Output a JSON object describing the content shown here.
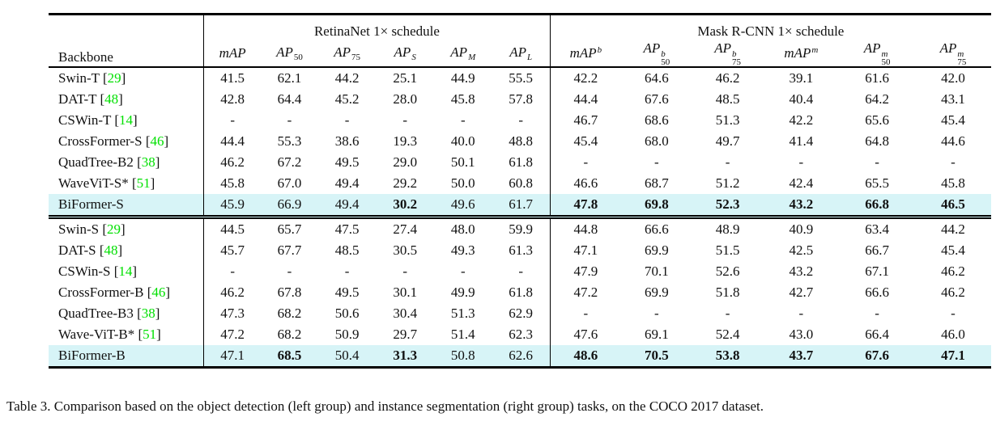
{
  "caption": "Table 3. Comparison based on the object detection (left group) and instance segmentation (right group) tasks, on the COCO 2017 dataset.",
  "colors": {
    "highlight": "#d7f4f7",
    "citation": "#00e000"
  },
  "table": {
    "header": {
      "backbone_label": "Backbone",
      "groups": [
        {
          "label": "RetinaNet 1× schedule",
          "columns": [
            {
              "base": "mAP"
            },
            {
              "base": "AP",
              "sub": "50"
            },
            {
              "base": "AP",
              "sub": "75"
            },
            {
              "base": "AP",
              "sub": "S"
            },
            {
              "base": "AP",
              "sub": "M"
            },
            {
              "base": "AP",
              "sub": "L"
            }
          ]
        },
        {
          "label": "Mask R-CNN 1× schedule",
          "columns": [
            {
              "base": "mAP",
              "sup": "b"
            },
            {
              "base": "AP",
              "sub": "50",
              "sup": "b"
            },
            {
              "base": "AP",
              "sub": "75",
              "sup": "b"
            },
            {
              "base": "mAP",
              "sup": "m"
            },
            {
              "base": "AP",
              "sub": "50",
              "sup": "m"
            },
            {
              "base": "AP",
              "sub": "75",
              "sup": "m"
            }
          ]
        }
      ]
    },
    "row_groups": [
      {
        "rows": [
          {
            "name": "Swin-T",
            "cite": "[29]",
            "highlight": false,
            "bold": [],
            "values": [
              "41.5",
              "62.1",
              "44.2",
              "25.1",
              "44.9",
              "55.5",
              "42.2",
              "64.6",
              "46.2",
              "39.1",
              "61.6",
              "42.0"
            ]
          },
          {
            "name": "DAT-T",
            "cite": "[48]",
            "highlight": false,
            "bold": [],
            "values": [
              "42.8",
              "64.4",
              "45.2",
              "28.0",
              "45.8",
              "57.8",
              "44.4",
              "67.6",
              "48.5",
              "40.4",
              "64.2",
              "43.1"
            ]
          },
          {
            "name": "CSWin-T",
            "cite": "[14]",
            "highlight": false,
            "bold": [],
            "values": [
              "-",
              "-",
              "-",
              "-",
              "-",
              "-",
              "46.7",
              "68.6",
              "51.3",
              "42.2",
              "65.6",
              "45.4"
            ]
          },
          {
            "name": "CrossFormer-S",
            "cite": "[46]",
            "highlight": false,
            "bold": [],
            "values": [
              "44.4",
              "55.3",
              "38.6",
              "19.3",
              "40.0",
              "48.8",
              "45.4",
              "68.0",
              "49.7",
              "41.4",
              "64.8",
              "44.6"
            ]
          },
          {
            "name": "QuadTree-B2",
            "cite": "[38]",
            "highlight": false,
            "bold": [],
            "values": [
              "46.2",
              "67.2",
              "49.5",
              "29.0",
              "50.1",
              "61.8",
              "-",
              "-",
              "-",
              "-",
              "-",
              "-"
            ]
          },
          {
            "name": "WaveViT-S*",
            "cite": "[51]",
            "highlight": false,
            "bold": [],
            "values": [
              "45.8",
              "67.0",
              "49.4",
              "29.2",
              "50.0",
              "60.8",
              "46.6",
              "68.7",
              "51.2",
              "42.4",
              "65.5",
              "45.8"
            ]
          },
          {
            "name": "BiFormer-S",
            "cite": "",
            "highlight": true,
            "bold": [
              3,
              6,
              7,
              8,
              9,
              10,
              11
            ],
            "values": [
              "45.9",
              "66.9",
              "49.4",
              "30.2",
              "49.6",
              "61.7",
              "47.8",
              "69.8",
              "52.3",
              "43.2",
              "66.8",
              "46.5"
            ]
          }
        ]
      },
      {
        "rows": [
          {
            "name": "Swin-S",
            "cite": "[29]",
            "highlight": false,
            "bold": [],
            "values": [
              "44.5",
              "65.7",
              "47.5",
              "27.4",
              "48.0",
              "59.9",
              "44.8",
              "66.6",
              "48.9",
              "40.9",
              "63.4",
              "44.2"
            ]
          },
          {
            "name": "DAT-S",
            "cite": "[48]",
            "highlight": false,
            "bold": [],
            "values": [
              "45.7",
              "67.7",
              "48.5",
              "30.5",
              "49.3",
              "61.3",
              "47.1",
              "69.9",
              "51.5",
              "42.5",
              "66.7",
              "45.4"
            ]
          },
          {
            "name": "CSWin-S",
            "cite": "[14]",
            "highlight": false,
            "bold": [],
            "values": [
              "-",
              "-",
              "-",
              "-",
              "-",
              "-",
              "47.9",
              "70.1",
              "52.6",
              "43.2",
              "67.1",
              "46.2"
            ]
          },
          {
            "name": "CrossFormer-B",
            "cite": "[46]",
            "highlight": false,
            "bold": [],
            "values": [
              "46.2",
              "67.8",
              "49.5",
              "30.1",
              "49.9",
              "61.8",
              "47.2",
              "69.9",
              "51.8",
              "42.7",
              "66.6",
              "46.2"
            ]
          },
          {
            "name": "QuadTree-B3",
            "cite": "[38]",
            "highlight": false,
            "bold": [],
            "values": [
              "47.3",
              "68.2",
              "50.6",
              "30.4",
              "51.3",
              "62.9",
              "-",
              "-",
              "-",
              "-",
              "-",
              "-"
            ]
          },
          {
            "name": "Wave-ViT-B*",
            "cite": "[51]",
            "highlight": false,
            "bold": [],
            "values": [
              "47.2",
              "68.2",
              "50.9",
              "29.7",
              "51.4",
              "62.3",
              "47.6",
              "69.1",
              "52.4",
              "43.0",
              "66.4",
              "46.0"
            ]
          },
          {
            "name": "BiFormer-B",
            "cite": "",
            "highlight": true,
            "bold": [
              1,
              3,
              6,
              7,
              8,
              9,
              10,
              11
            ],
            "values": [
              "47.1",
              "68.5",
              "50.4",
              "31.3",
              "50.8",
              "62.6",
              "48.6",
              "70.5",
              "53.8",
              "43.7",
              "67.6",
              "47.1"
            ]
          }
        ]
      }
    ]
  }
}
